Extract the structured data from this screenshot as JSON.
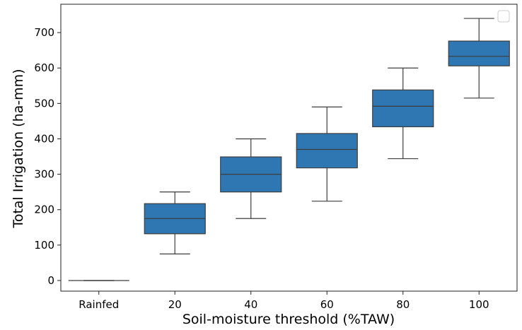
{
  "chart_data": {
    "type": "box",
    "xlabel": "Soil-moisture threshold (%TAW)",
    "ylabel": "Total Irrigation (ha-mm)",
    "categories": [
      "Rainfed",
      "20",
      "40",
      "60",
      "80",
      "100"
    ],
    "yticks": [
      0,
      100,
      200,
      300,
      400,
      500,
      600,
      700
    ],
    "ylim": [
      -30,
      780
    ],
    "boxes": [
      {
        "category": "Rainfed",
        "whisker_low": 0,
        "q1": 0,
        "median": 0,
        "q3": 0,
        "whisker_high": 0
      },
      {
        "category": "20",
        "whisker_low": 75,
        "q1": 132,
        "median": 175,
        "q3": 217,
        "whisker_high": 250
      },
      {
        "category": "40",
        "whisker_low": 175,
        "q1": 250,
        "median": 300,
        "q3": 349,
        "whisker_high": 400
      },
      {
        "category": "60",
        "whisker_low": 224,
        "q1": 318,
        "median": 370,
        "q3": 415,
        "whisker_high": 490
      },
      {
        "category": "80",
        "whisker_low": 344,
        "q1": 434,
        "median": 492,
        "q3": 538,
        "whisker_high": 600
      },
      {
        "category": "100",
        "whisker_low": 515,
        "q1": 606,
        "median": 633,
        "q3": 676,
        "whisker_high": 740
      }
    ],
    "box_color": "#2f77b2",
    "line_color": "#3d3d3d",
    "grid": false,
    "legend": "top-right (empty)"
  }
}
